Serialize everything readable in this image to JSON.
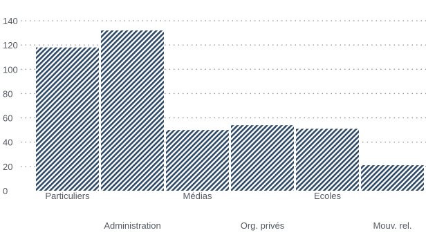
{
  "chart_data": {
    "type": "bar",
    "title": "",
    "xlabel": "",
    "ylabel": "",
    "categories": [
      "Particuliers",
      "Administration",
      "Médias",
      "Org. privés",
      "Ecoles",
      "Mouv. rel."
    ],
    "values": [
      118,
      132,
      50,
      54,
      51,
      21
    ],
    "ylim": [
      0,
      140
    ],
    "yticks": [
      "0",
      "20",
      "40",
      "60",
      "80",
      "100",
      "120",
      "140"
    ],
    "grid": "dotted horizontal",
    "bar_fill": "diagonal hatch",
    "colors": {
      "bar": "#2f4a66",
      "grid": "#8a8f96",
      "text": "#555a62"
    }
  }
}
